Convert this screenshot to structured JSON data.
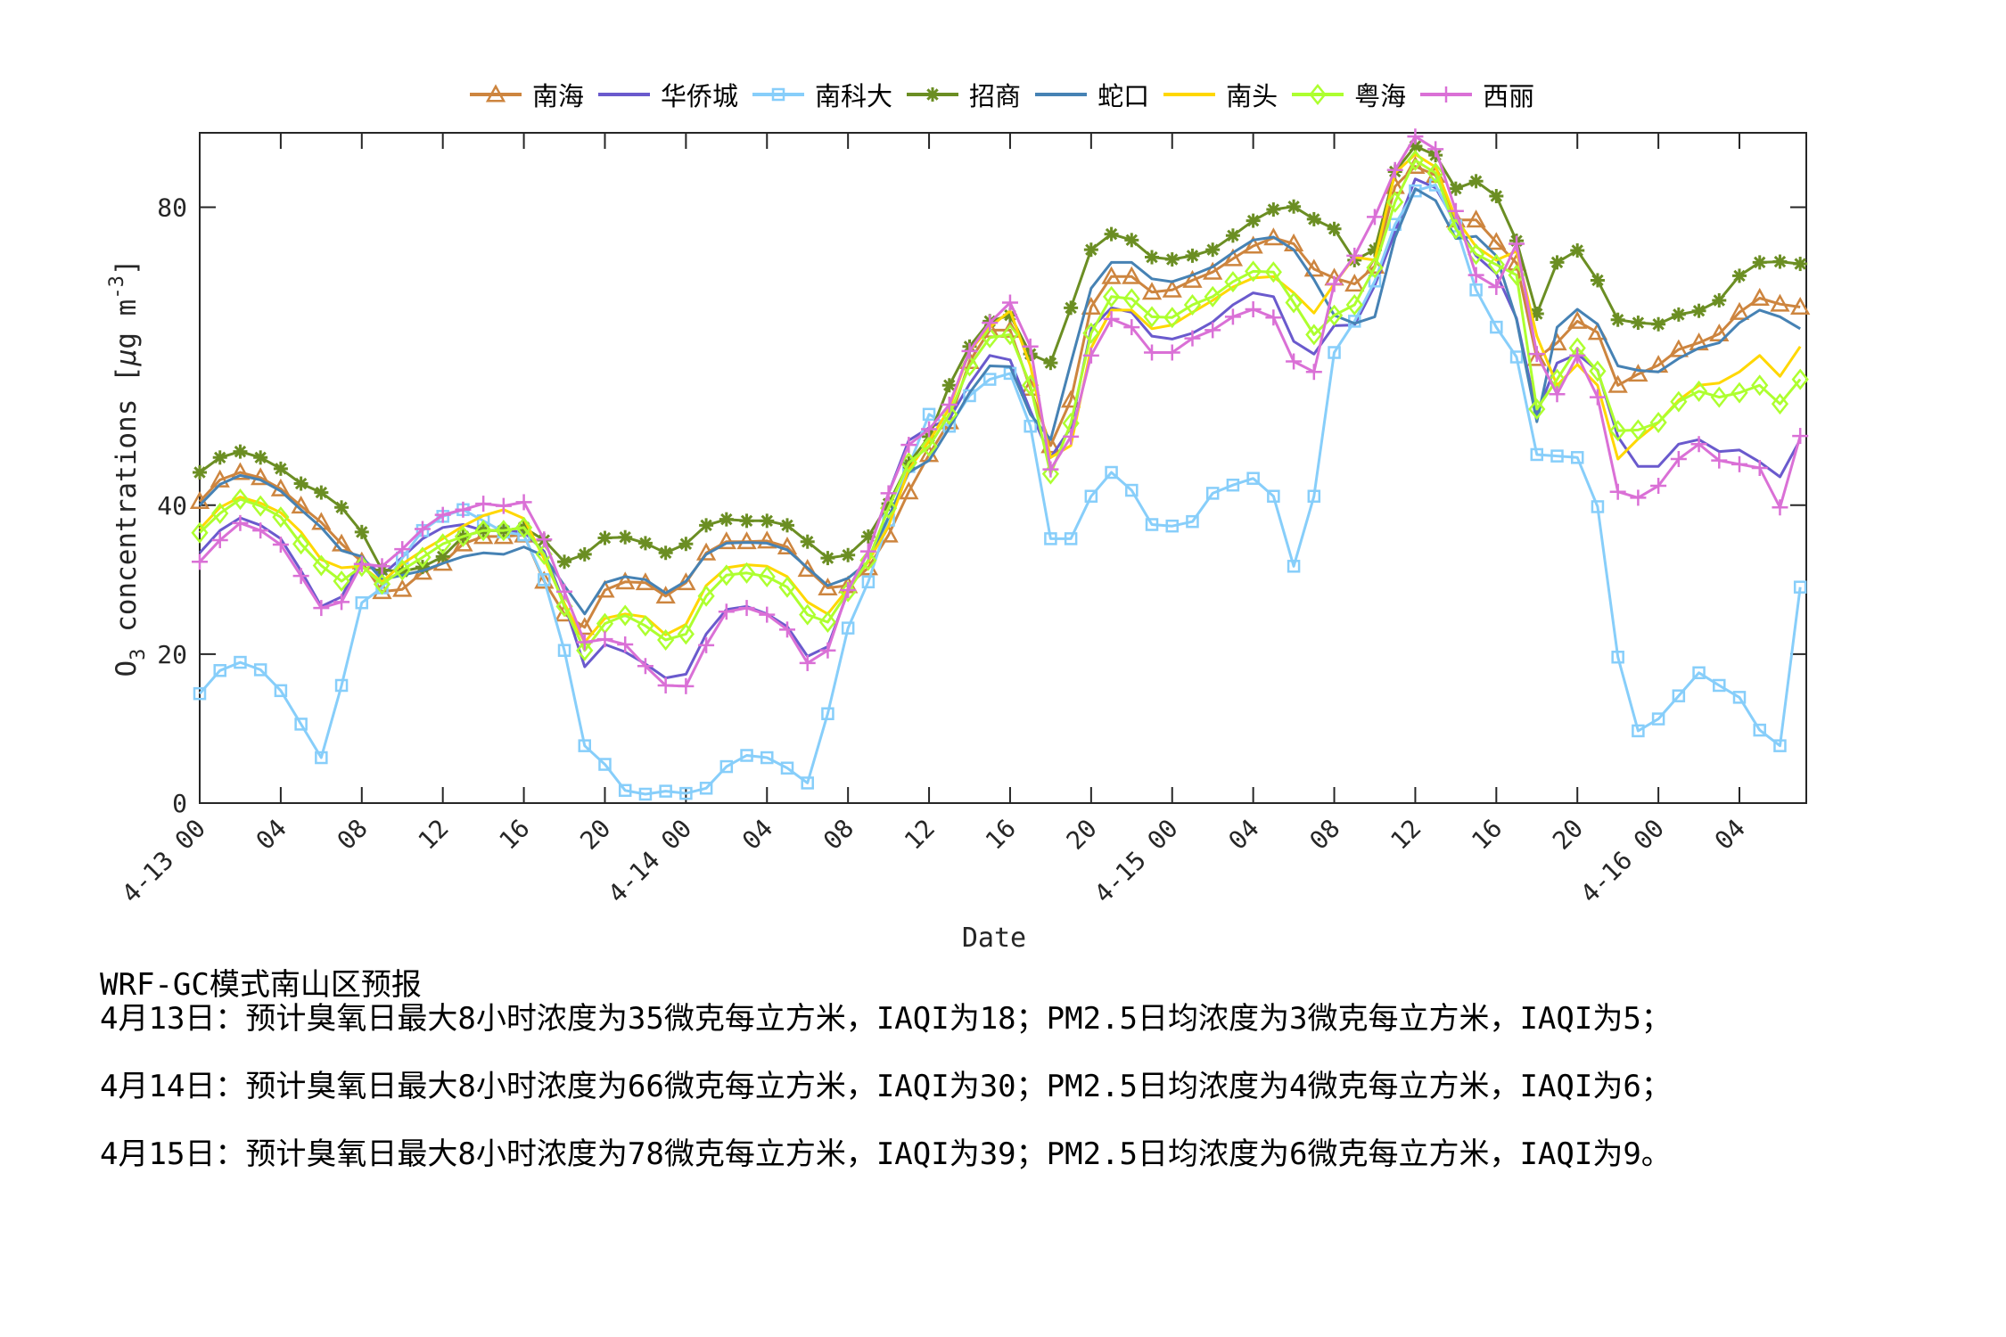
{
  "legend": [
    {
      "label": "南海",
      "color": "#CD853F",
      "marker": "triangle-icon"
    },
    {
      "label": "华侨城",
      "color": "#6A5ACD",
      "marker": "none"
    },
    {
      "label": "南科大",
      "color": "#87CEFA",
      "marker": "square-icon"
    },
    {
      "label": "招商",
      "color": "#6B8E23",
      "marker": "star-icon"
    },
    {
      "label": "蛇口",
      "color": "#4682B4",
      "marker": "none"
    },
    {
      "label": "南头",
      "color": "#FFD700",
      "marker": "none"
    },
    {
      "label": "粤海",
      "color": "#ADFF2F",
      "marker": "diamond-icon"
    },
    {
      "label": "西丽",
      "color": "#DA70D6",
      "marker": "plus-icon"
    }
  ],
  "notes": {
    "title": "WRF-GC模式南山区预报",
    "lines": [
      "4月13日：预计臭氧日最大8小时浓度为35微克每立方米，IAQI为18；PM2.5日均浓度为3微克每立方米，IAQI为5；",
      "4月14日：预计臭氧日最大8小时浓度为66微克每立方米，IAQI为30；PM2.5日均浓度为4微克每立方米，IAQI为6；",
      "4月15日：预计臭氧日最大8小时浓度为78微克每立方米，IAQI为39；PM2.5日均浓度为6微克每立方米，IAQI为9。"
    ]
  },
  "chart_data": {
    "type": "line",
    "title": "",
    "xlabel": "Date",
    "ylabel": "O3 concentrations [μg m-3]",
    "ylabel_parts": {
      "main": "O",
      "sub": "3",
      "rest": " concentrations [",
      "mu": "μ",
      "unit": "g m",
      "sup": "-3",
      "close": "]"
    },
    "ylim": [
      0,
      90
    ],
    "yticks": [
      0,
      20,
      40,
      80
    ],
    "x_start": "4-13 00",
    "x_step_hours": 1,
    "xlim_hours": [
      0,
      79
    ],
    "xticks": [
      {
        "h": 0,
        "label": "00",
        "date": "4-13"
      },
      {
        "h": 4,
        "label": "04"
      },
      {
        "h": 8,
        "label": "08"
      },
      {
        "h": 12,
        "label": "12"
      },
      {
        "h": 16,
        "label": "16"
      },
      {
        "h": 20,
        "label": "20"
      },
      {
        "h": 24,
        "label": "00",
        "date": "4-14"
      },
      {
        "h": 28,
        "label": "04"
      },
      {
        "h": 32,
        "label": "08"
      },
      {
        "h": 36,
        "label": "12"
      },
      {
        "h": 40,
        "label": "16"
      },
      {
        "h": 44,
        "label": "20"
      },
      {
        "h": 48,
        "label": "00",
        "date": "4-15"
      },
      {
        "h": 52,
        "label": "04"
      },
      {
        "h": 56,
        "label": "08"
      },
      {
        "h": 60,
        "label": "12"
      },
      {
        "h": 64,
        "label": "16"
      },
      {
        "h": 68,
        "label": "20"
      },
      {
        "h": 72,
        "label": "00",
        "date": "4-16"
      },
      {
        "h": 76,
        "label": "04"
      }
    ],
    "grid": false,
    "legend_position": "top",
    "series": [
      {
        "name": "南海",
        "values": [
          40.5,
          43.4,
          44.4,
          43.7,
          42.2,
          39.9,
          37.7,
          34.8,
          32.4,
          28.4,
          28.7,
          31.0,
          32.2,
          34.8,
          35.8,
          35.8,
          36.0,
          29.8,
          25.4,
          23.6,
          28.6,
          29.7,
          29.6,
          27.8,
          29.6,
          33.6,
          35.1,
          35.1,
          35.2,
          34.4,
          31.4,
          28.9,
          29.2,
          31.6,
          36.0,
          41.8,
          46.8,
          51.2,
          59.3,
          63.5,
          63.5,
          55.7,
          48.0,
          54.1,
          66.6,
          70.7,
          70.7,
          68.6,
          68.9,
          70.2,
          71.3,
          73.1,
          74.8,
          75.9,
          75.1,
          71.7,
          70.5,
          69.7,
          72.1,
          82.8,
          85.5,
          84.3,
          78.3,
          78.3,
          75.3,
          72.5,
          59.7,
          61.8,
          64.7,
          63.2,
          56.1,
          57.6,
          58.8,
          60.9,
          61.8,
          63.0,
          65.9,
          67.8,
          67.0,
          66.6
        ]
      },
      {
        "name": "华侨城",
        "values": [
          33.6,
          36.6,
          38.3,
          37.3,
          35.5,
          31.2,
          26.4,
          27.7,
          32.9,
          30.6,
          33.0,
          35.5,
          37.0,
          37.4,
          36.6,
          36.6,
          36.4,
          33.8,
          26.8,
          18.3,
          21.3,
          20.3,
          18.7,
          16.8,
          17.3,
          22.7,
          26.0,
          26.4,
          25.4,
          23.7,
          19.7,
          21.0,
          28.4,
          33.8,
          41.6,
          48.7,
          50.4,
          51.6,
          56.3,
          60.1,
          59.5,
          52.7,
          46.4,
          50.4,
          63.7,
          66.5,
          65.9,
          62.7,
          62.3,
          63.1,
          64.6,
          66.9,
          68.5,
          68.0,
          62.0,
          60.3,
          64.1,
          64.2,
          69.5,
          76.7,
          83.8,
          82.6,
          77.9,
          73.5,
          71.1,
          65.1,
          52.3,
          59.1,
          60.3,
          58.1,
          49.2,
          45.2,
          45.2,
          48.2,
          48.8,
          47.2,
          47.4,
          45.8,
          43.8,
          48.8
        ]
      },
      {
        "name": "南科大",
        "values": [
          14.7,
          17.8,
          18.9,
          17.9,
          15.1,
          10.6,
          6.1,
          15.8,
          26.9,
          28.9,
          32.9,
          36.6,
          38.5,
          39.4,
          37.9,
          36.4,
          36.0,
          30.0,
          20.5,
          7.7,
          5.2,
          1.7,
          1.2,
          1.6,
          1.3,
          2.0,
          4.9,
          6.4,
          6.1,
          4.7,
          2.7,
          12.0,
          23.5,
          29.7,
          38.0,
          45.2,
          52.2,
          50.6,
          54.7,
          56.9,
          57.7,
          50.6,
          35.5,
          35.5,
          41.2,
          44.4,
          42.0,
          37.4,
          37.2,
          37.8,
          41.6,
          42.7,
          43.6,
          41.2,
          31.8,
          41.2,
          60.5,
          64.7,
          70.1,
          77.7,
          82.2,
          83.0,
          77.5,
          68.9,
          63.9,
          59.9,
          46.8,
          46.6,
          46.4,
          39.8,
          19.6,
          9.7,
          11.3,
          14.4,
          17.5,
          15.8,
          14.2,
          9.8,
          7.7,
          29.0
        ]
      },
      {
        "name": "招商",
        "values": [
          44.4,
          46.4,
          47.2,
          46.4,
          44.9,
          42.9,
          41.7,
          39.7,
          36.4,
          31.3,
          31.1,
          31.7,
          33.1,
          35.8,
          36.6,
          36.6,
          37.0,
          35.3,
          32.4,
          33.4,
          35.6,
          35.7,
          34.9,
          33.6,
          34.8,
          37.3,
          38.1,
          37.9,
          37.9,
          37.3,
          35.1,
          32.9,
          33.3,
          35.8,
          40.2,
          45.6,
          49.2,
          56.1,
          61.3,
          64.7,
          65.5,
          60.3,
          59.1,
          66.5,
          74.3,
          76.4,
          75.6,
          73.3,
          73.0,
          73.5,
          74.3,
          76.2,
          78.2,
          79.7,
          80.1,
          78.4,
          77.1,
          72.9,
          74.3,
          84.8,
          88.2,
          87.0,
          82.5,
          83.5,
          81.5,
          75.5,
          65.7,
          72.6,
          74.2,
          70.2,
          64.9,
          64.5,
          64.3,
          65.6,
          66.1,
          67.5,
          70.8,
          72.6,
          72.7,
          72.4
        ]
      },
      {
        "name": "蛇口",
        "values": [
          40.0,
          42.8,
          44.0,
          43.4,
          41.9,
          39.4,
          37.0,
          33.9,
          33.1,
          30.0,
          30.6,
          31.2,
          32.2,
          33.1,
          33.6,
          33.4,
          34.4,
          33.2,
          29.2,
          25.4,
          29.6,
          30.4,
          30.0,
          28.2,
          29.8,
          33.4,
          34.9,
          35.0,
          34.9,
          34.0,
          31.6,
          29.2,
          30.2,
          32.4,
          38.4,
          44.4,
          46.0,
          50.4,
          55.1,
          58.7,
          58.6,
          52.2,
          48.8,
          59.1,
          69.1,
          72.6,
          72.6,
          70.4,
          70.0,
          70.9,
          72.0,
          73.9,
          75.6,
          76.0,
          74.3,
          70.3,
          65.5,
          64.4,
          65.3,
          75.9,
          82.5,
          80.9,
          75.8,
          76.1,
          73.5,
          64.9,
          51.2,
          63.9,
          66.3,
          64.3,
          58.7,
          58.1,
          57.9,
          59.7,
          61.1,
          61.8,
          64.5,
          66.2,
          65.3,
          63.7
        ]
      },
      {
        "name": "南头",
        "values": [
          36.8,
          39.7,
          41.1,
          40.3,
          39.0,
          36.4,
          32.7,
          31.6,
          31.8,
          29.7,
          32.1,
          33.9,
          35.5,
          37.2,
          38.6,
          39.4,
          38.2,
          32.8,
          26.8,
          21.6,
          24.8,
          25.4,
          25.0,
          22.6,
          24.0,
          29.2,
          31.6,
          32.0,
          31.8,
          30.4,
          27.0,
          25.4,
          28.8,
          32.4,
          37.2,
          44.8,
          48.6,
          53.0,
          60.7,
          63.9,
          66.1,
          58.7,
          46.4,
          48.0,
          61.1,
          66.2,
          66.2,
          63.7,
          64.2,
          65.9,
          67.5,
          69.3,
          70.5,
          70.7,
          68.5,
          65.8,
          69.7,
          73.3,
          72.9,
          84.6,
          87.1,
          85.4,
          78.5,
          74.7,
          72.9,
          74.1,
          62.7,
          56.1,
          58.9,
          56.1,
          46.2,
          48.9,
          51.1,
          54.1,
          56.1,
          56.4,
          57.9,
          60.1,
          57.3,
          61.3
        ]
      },
      {
        "name": "粤海",
        "values": [
          36.3,
          38.9,
          40.8,
          39.9,
          38.4,
          34.8,
          31.9,
          29.8,
          31.8,
          29.4,
          31.3,
          33.0,
          34.8,
          35.8,
          36.6,
          36.6,
          37.0,
          33.4,
          26.4,
          20.5,
          24.1,
          25.2,
          23.8,
          21.9,
          22.7,
          27.8,
          30.6,
          30.9,
          30.4,
          29.0,
          25.3,
          24.3,
          28.4,
          32.6,
          39.6,
          45.7,
          47.9,
          52.2,
          58.7,
          62.5,
          62.9,
          56.1,
          44.2,
          51.0,
          63.1,
          68.0,
          67.7,
          65.3,
          65.2,
          66.9,
          68.0,
          70.0,
          71.4,
          71.3,
          67.2,
          62.9,
          65.5,
          66.9,
          71.9,
          80.7,
          86.3,
          84.6,
          77.1,
          73.7,
          72.3,
          70.9,
          52.9,
          56.9,
          61.1,
          58.0,
          50.0,
          50.1,
          51.1,
          53.9,
          55.3,
          54.5,
          55.1,
          56.1,
          53.6,
          56.9
        ]
      },
      {
        "name": "西丽",
        "values": [
          32.4,
          35.3,
          37.6,
          36.6,
          34.7,
          30.5,
          26.2,
          27.0,
          32.1,
          31.8,
          34.1,
          36.8,
          38.7,
          39.4,
          40.2,
          39.9,
          40.4,
          35.4,
          28.4,
          21.6,
          22.0,
          21.3,
          18.4,
          15.8,
          15.7,
          21.2,
          25.7,
          26.2,
          25.3,
          23.3,
          18.8,
          20.5,
          28.6,
          33.8,
          41.6,
          48.1,
          50.2,
          53.5,
          60.7,
          64.5,
          67.2,
          61.3,
          44.8,
          49.2,
          60.1,
          65.0,
          63.9,
          60.5,
          60.5,
          62.4,
          63.5,
          65.3,
          66.3,
          65.2,
          59.3,
          57.9,
          69.7,
          73.5,
          78.7,
          85.0,
          89.5,
          87.8,
          79.5,
          70.9,
          69.3,
          75.1,
          60.3,
          54.9,
          60.1,
          54.5,
          41.8,
          41.0,
          42.6,
          46.2,
          48.2,
          46.0,
          45.5,
          45.0,
          39.7,
          49.3
        ]
      }
    ]
  }
}
